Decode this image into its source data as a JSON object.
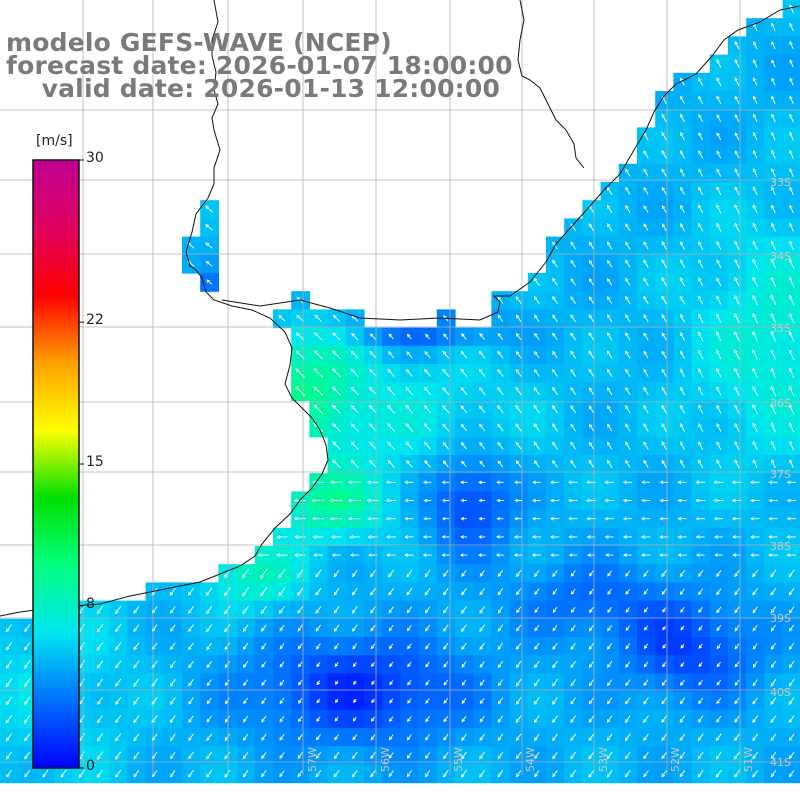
{
  "title": {
    "line1": "modelo GEFS-WAVE (NCEP)",
    "line2": "forecast date: 2026-01-07 18:00:00",
    "line3": "    valid date: 2026-01-13 12:00:00"
  },
  "colorbar": {
    "unit": "[m/s]",
    "min": 0,
    "max": 30,
    "ticks": [
      "30",
      "22",
      "15",
      "8",
      "0"
    ],
    "tick_values": [
      30,
      22,
      15,
      8,
      0
    ],
    "stops": [
      "#0000ff",
      "#0070ff",
      "#00e6f0",
      "#00ff80",
      "#00e000",
      "#ffff00",
      "#ffa000",
      "#ff0000",
      "#e00060",
      "#c00090"
    ]
  },
  "grid_labels": {
    "lat": [
      "33S",
      "34S",
      "35S",
      "36S",
      "37S",
      "38S",
      "39S",
      "40S",
      "41S"
    ],
    "lon": [
      "57W",
      "56W",
      "55W",
      "54W",
      "53W",
      "52W",
      "51W"
    ]
  },
  "colors": {
    "land": "#ffffff",
    "coast": "#111111",
    "grid": "#b0b0b0",
    "arrow": "#ffffff",
    "title": "#7a7a7a"
  }
}
